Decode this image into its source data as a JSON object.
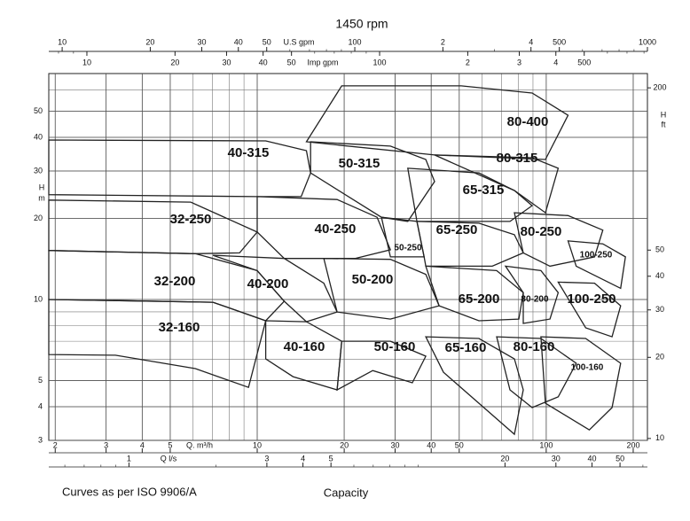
{
  "chart_data": {
    "type": "pump-selection",
    "title": "1450 rpm",
    "x_label": "Capacity",
    "footnote": "Curves as per ISO  9906/A",
    "log_scale": true,
    "grid": true,
    "color": "#222222",
    "x_unit": "Q. m³/h",
    "xlim": [
      1.9,
      224
    ],
    "xticks": [
      2,
      3,
      4,
      5,
      10,
      20,
      30,
      40,
      50,
      100,
      200
    ],
    "x2_unit": "U.S gpm",
    "x2lim": [
      9.0,
      1000
    ],
    "x2ticks": [
      10,
      20,
      30,
      40,
      50,
      100,
      {
        "value": 200,
        "label": "2"
      },
      {
        "value": 400,
        "label": "4"
      },
      500,
      1000
    ],
    "x3_unit": "Imp gpm",
    "x3lim": [
      7.41,
      822
    ],
    "x3ticks": [
      10,
      20,
      30,
      40,
      50,
      100,
      {
        "value": 200,
        "label": "2"
      },
      {
        "value": 300,
        "label": "3"
      },
      {
        "value": 400,
        "label": "4"
      },
      500
    ],
    "x4_unit": "Q l/s",
    "x4lim": [
      0.528,
      62.2
    ],
    "x4ticks": [
      1,
      3,
      4,
      5,
      20,
      30,
      40,
      50
    ],
    "y_label": "H",
    "y_unit": "m",
    "ylim": [
      3,
      69
    ],
    "yticks": [
      3,
      4,
      5,
      10,
      20,
      30,
      40,
      50
    ],
    "y2_label": "H",
    "y2_unit": "ft",
    "y2lim": [
      9.84,
      226
    ],
    "y2ticks": [
      10,
      20,
      30,
      40,
      50,
      200
    ],
    "models": [
      {
        "name": "32-160",
        "q": [
          1.9,
          7.03,
          10.7,
          9.33,
          6.11,
          3.23,
          1.9
        ],
        "h": [
          10,
          9.77,
          8.34,
          4.72,
          5.54,
          6.21,
          6.25
        ]
      },
      {
        "name": "32-200",
        "q": [
          1.9,
          6.11,
          10.0,
          12.4,
          10.7,
          7.03,
          1.9
        ],
        "h": [
          15.2,
          14.8,
          12.8,
          9.85,
          8.34,
          9.77,
          10
        ]
      },
      {
        "name": "32-250",
        "q": [
          1.9,
          5.89,
          10.0,
          8.69,
          6.11,
          1.9
        ],
        "h": [
          23.4,
          23.0,
          17.8,
          14.9,
          14.8,
          15.2
        ]
      },
      {
        "name": "40-160",
        "q": [
          10.7,
          14.8,
          19.6,
          18.9,
          13.3,
          10.7
        ],
        "h": [
          8.34,
          8.27,
          7.0,
          4.62,
          5.17,
          6.02
        ]
      },
      {
        "name": "40-200",
        "q": [
          7.03,
          12.4,
          17.0,
          18.9,
          14.8,
          12.4,
          10.0
        ],
        "h": [
          14.6,
          14.2,
          11.5,
          8.99,
          8.27,
          9.85,
          12.8
        ]
      },
      {
        "name": "40-250",
        "q": [
          10.0,
          18.9,
          26.0,
          28.9,
          21.8,
          12.4,
          10.0
        ],
        "h": [
          24.1,
          23.5,
          20.2,
          15.3,
          14.2,
          14.2,
          17.8
        ]
      },
      {
        "name": "40-315",
        "q": [
          1.9,
          10.7,
          14.8,
          15.3,
          14.2,
          10.0,
          1.9
        ],
        "h": [
          39.1,
          38.8,
          35.7,
          29.5,
          24.1,
          24.1,
          24.5
        ]
      },
      {
        "name": "50-160",
        "q": [
          19.6,
          28.9,
          38.3,
          34.4,
          25.1,
          18.9
        ],
        "h": [
          7.0,
          7.0,
          6.16,
          4.91,
          5.45,
          4.62
        ]
      },
      {
        "name": "50-200",
        "q": [
          17.0,
          28.9,
          38.3,
          42.6,
          28.9,
          18.9
        ],
        "h": [
          14.2,
          14.1,
          12.4,
          9.48,
          8.46,
          8.99
        ]
      },
      {
        "name": "50-250",
        "q": [
          26.9,
          35.7,
          37.8,
          28.9
        ],
        "h": [
          20.2,
          19.5,
          14.4,
          14.4
        ]
      },
      {
        "name": "50-315",
        "q": [
          15.3,
          28.9,
          38.3,
          41.1,
          33.2,
          26.9,
          15.3
        ],
        "h": [
          38.5,
          37.1,
          33.1,
          27.4,
          19.5,
          20.2,
          29.5
        ]
      },
      {
        "name": "65-160",
        "q": [
          38.3,
          58.5,
          77.6,
          83.3,
          77.6,
          44.1
        ],
        "h": [
          7.27,
          7.17,
          6.02,
          4.62,
          3.16,
          5.37
        ]
      },
      {
        "name": "65-200",
        "q": [
          38.3,
          67.4,
          83.3,
          80.4,
          58.5,
          42.6
        ],
        "h": [
          13.3,
          12.8,
          10.6,
          8.46,
          8.34,
          9.48
        ]
      },
      {
        "name": "65-250",
        "q": [
          35.7,
          58.5,
          77.6,
          83.3,
          65.1,
          38.3,
          37.8
        ],
        "h": [
          19.5,
          19.2,
          17.4,
          14.9,
          13.3,
          13.3,
          14.4
        ]
      },
      {
        "name": "65-315",
        "q": [
          33.2,
          58.5,
          77.6,
          89.4,
          74.9,
          35.7
        ],
        "h": [
          30.7,
          29.5,
          25.4,
          22.3,
          19.5,
          19.5
        ]
      },
      {
        "name": "80-160",
        "q": [
          67.4,
          95.9,
          127,
          110,
          89.4,
          74.9
        ],
        "h": [
          7.27,
          7.17,
          5.8,
          4.35,
          3.97,
          4.62
        ]
      },
      {
        "name": "80-200",
        "q": [
          72.3,
          95.9,
          110,
          103,
          83.3,
          83.3
        ],
        "h": [
          13.3,
          12.8,
          10.6,
          8.46,
          8.15,
          10.6
        ]
      },
      {
        "name": "80-250",
        "q": [
          77.6,
          119,
          157,
          147,
          103,
          83.3
        ],
        "h": [
          21.0,
          20.5,
          18.1,
          14.4,
          13.3,
          14.9
        ]
      },
      {
        "name": "80-315",
        "q": [
          41.1,
          89.4,
          110,
          99.4,
          77.6
        ],
        "h": [
          34.4,
          33.6,
          30.7,
          21.0,
          25.4
        ]
      },
      {
        "name": "80-400",
        "q": [
          19.6,
          50.8,
          89.4,
          119,
          99.4,
          41.1,
          14.8
        ],
        "h": [
          62.1,
          62.1,
          58.4,
          48.3,
          33.1,
          34.4,
          38.5
        ]
      },
      {
        "name": "100-160",
        "q": [
          95.9,
          137,
          181,
          169,
          141,
          99.4
        ],
        "h": [
          7.27,
          7.17,
          5.8,
          3.97,
          3.28,
          4.12
        ]
      },
      {
        "name": "100-250",
        "q": [
          119,
          157,
          188,
          181,
          127
        ],
        "h": [
          16.5,
          16.1,
          14.4,
          11.0,
          13.3
        ]
      },
      {
        "name": "100-250",
        "q": [
          110,
          147,
          181,
          169,
          137
        ],
        "h": [
          11.6,
          11.5,
          9.48,
          7.27,
          7.85
        ]
      }
    ]
  }
}
